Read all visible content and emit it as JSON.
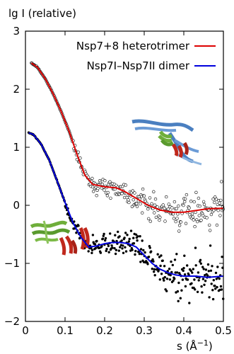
{
  "chart_data": {
    "type": "scatter",
    "ylabel": "lg I (relative)",
    "xlabel": "s (Å",
    "xlabel_exp": "−1",
    "xlabel_close": ")",
    "xlim": [
      0,
      0.5
    ],
    "ylim": [
      -2,
      3
    ],
    "xticks": [
      {
        "v": 0,
        "label": "0"
      },
      {
        "v": 0.1,
        "label": "0.1"
      },
      {
        "v": 0.2,
        "label": "0.2"
      },
      {
        "v": 0.3,
        "label": "0.3"
      },
      {
        "v": 0.4,
        "label": "0.4"
      },
      {
        "v": 0.5,
        "label": "0.5"
      }
    ],
    "yticks": [
      {
        "v": -2,
        "label": "−2"
      },
      {
        "v": -1,
        "label": "−1"
      },
      {
        "v": 0,
        "label": "0"
      },
      {
        "v": 1,
        "label": "1"
      },
      {
        "v": 2,
        "label": "2"
      },
      {
        "v": 3,
        "label": "3"
      }
    ],
    "legend_position": "top-right",
    "series": [
      {
        "name": "Nsp7+8 heterotrimer",
        "color": "#dd0000",
        "marker": "open-circle",
        "fit": [
          [
            0.015,
            2.45
          ],
          [
            0.03,
            2.38
          ],
          [
            0.05,
            2.18
          ],
          [
            0.07,
            1.92
          ],
          [
            0.09,
            1.62
          ],
          [
            0.11,
            1.28
          ],
          [
            0.13,
            0.88
          ],
          [
            0.15,
            0.52
          ],
          [
            0.17,
            0.36
          ],
          [
            0.2,
            0.32
          ],
          [
            0.23,
            0.3
          ],
          [
            0.25,
            0.24
          ],
          [
            0.28,
            0.12
          ],
          [
            0.31,
            0.0
          ],
          [
            0.34,
            -0.08
          ],
          [
            0.37,
            -0.12
          ],
          [
            0.4,
            -0.12
          ],
          [
            0.43,
            -0.09
          ],
          [
            0.46,
            -0.06
          ],
          [
            0.5,
            -0.05
          ]
        ]
      },
      {
        "name": "Nsp7I–Nsp7II dimer",
        "color": "#0000dd",
        "marker": "filled-circle",
        "fit": [
          [
            0.008,
            1.25
          ],
          [
            0.02,
            1.22
          ],
          [
            0.04,
            1.05
          ],
          [
            0.06,
            0.78
          ],
          [
            0.08,
            0.42
          ],
          [
            0.1,
            0.05
          ],
          [
            0.12,
            -0.3
          ],
          [
            0.14,
            -0.55
          ],
          [
            0.16,
            -0.72
          ],
          [
            0.18,
            -0.7
          ],
          [
            0.2,
            -0.66
          ],
          [
            0.22,
            -0.64
          ],
          [
            0.24,
            -0.64
          ],
          [
            0.26,
            -0.66
          ],
          [
            0.28,
            -0.72
          ],
          [
            0.3,
            -0.86
          ],
          [
            0.32,
            -1.0
          ],
          [
            0.34,
            -1.1
          ],
          [
            0.36,
            -1.16
          ],
          [
            0.38,
            -1.2
          ],
          [
            0.4,
            -1.22
          ],
          [
            0.43,
            -1.22
          ],
          [
            0.46,
            -1.24
          ],
          [
            0.5,
            -1.22
          ]
        ]
      }
    ],
    "legend_sample": [
      {
        "x": 0.445,
        "y": 2.7
      },
      {
        "x": 0.453,
        "y": 2.4
      }
    ],
    "icon_names": [
      "heterotrimer-structure-icon",
      "dimer-structure-icon"
    ]
  }
}
